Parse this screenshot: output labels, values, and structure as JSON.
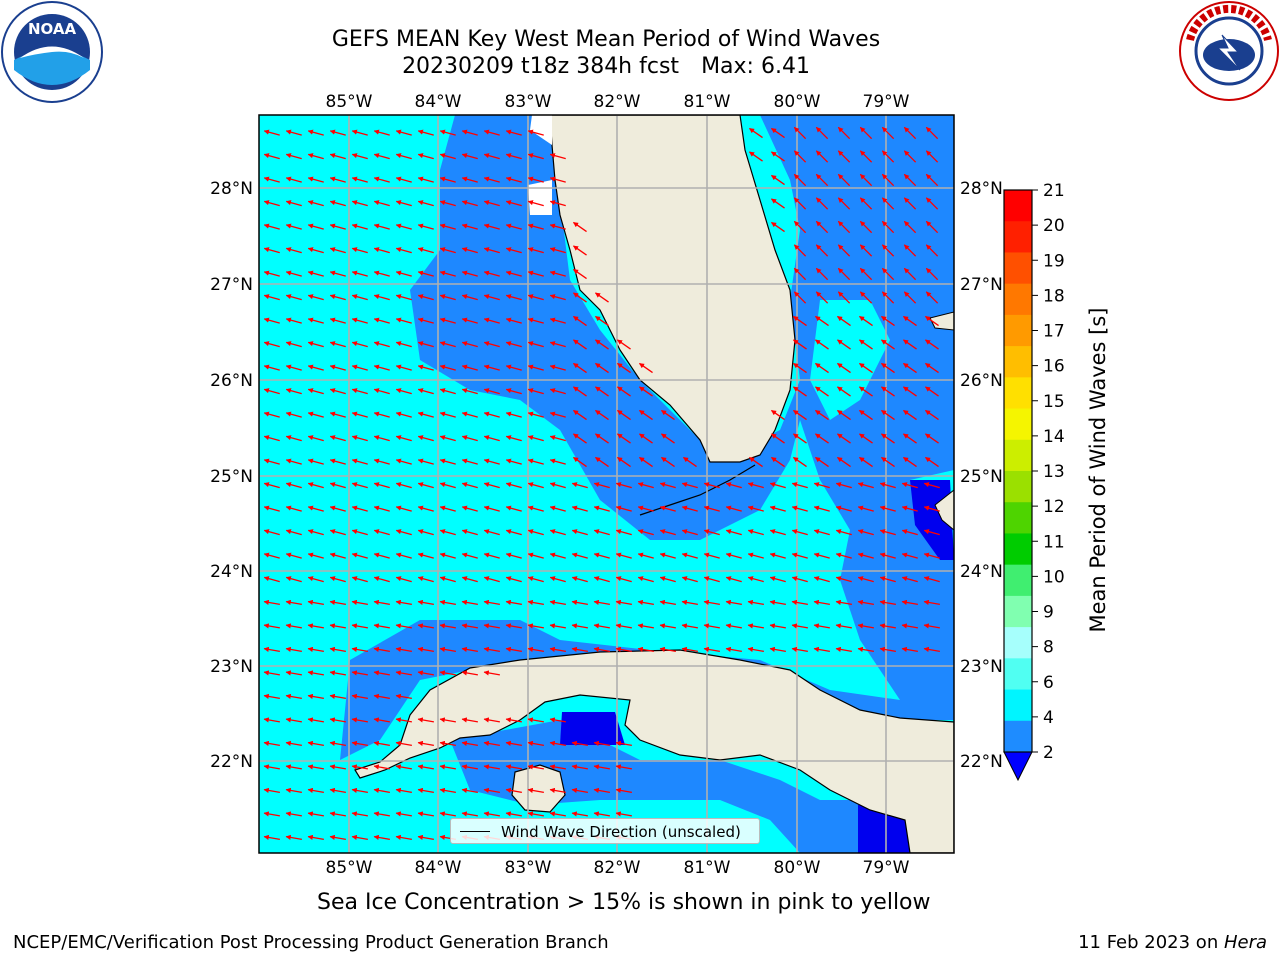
{
  "title_line1": "GEFS MEAN Key West Mean Period of Wind Waves",
  "title_line2_left": "20230209 t18z 384h fcst",
  "title_line2_right": "Max: 6.41",
  "lon_labels": [
    "85°W",
    "84°W",
    "83°W",
    "82°W",
    "81°W",
    "80°W",
    "79°W"
  ],
  "lat_labels": [
    "28°N",
    "27°N",
    "26°N",
    "25°N",
    "24°N",
    "23°N",
    "22°N"
  ],
  "legend_label": "Wind Wave Direction (unscaled)",
  "colorbar": {
    "label": "Mean Period of Wind Waves [s]",
    "ticks": [
      "21",
      "20",
      "19",
      "18",
      "17",
      "16",
      "15",
      "14",
      "13",
      "12",
      "11",
      "10",
      "9",
      "8",
      "6",
      "4",
      "2"
    ],
    "colors": [
      "#ff0000",
      "#ff2000",
      "#ff5000",
      "#ff7800",
      "#ff9a00",
      "#ffbe00",
      "#ffe000",
      "#f5f500",
      "#ccee00",
      "#9be000",
      "#4ed400",
      "#00cc00",
      "#40ee70",
      "#80ffb0",
      "#a6fffc",
      "#50fff2",
      "#00f5ff",
      "#1e8cff"
    ],
    "extend_color": "#0000ff"
  },
  "caption": "Sea Ice Concentration > 15% is shown in pink to yellow",
  "footer_left": "NCEP/EMC/Verification Post Processing Product Generation Branch",
  "footer_right_prefix": "11 Feb 2023 on ",
  "footer_right_host": "Hera",
  "map_colors": {
    "ocean_low": "#00ffff",
    "ocean_mid": "#1e88ff",
    "ocean_deep": "#0000ee",
    "land": "#efecdc",
    "grid": "#b0b0b0",
    "arrow": "#ff0000"
  }
}
